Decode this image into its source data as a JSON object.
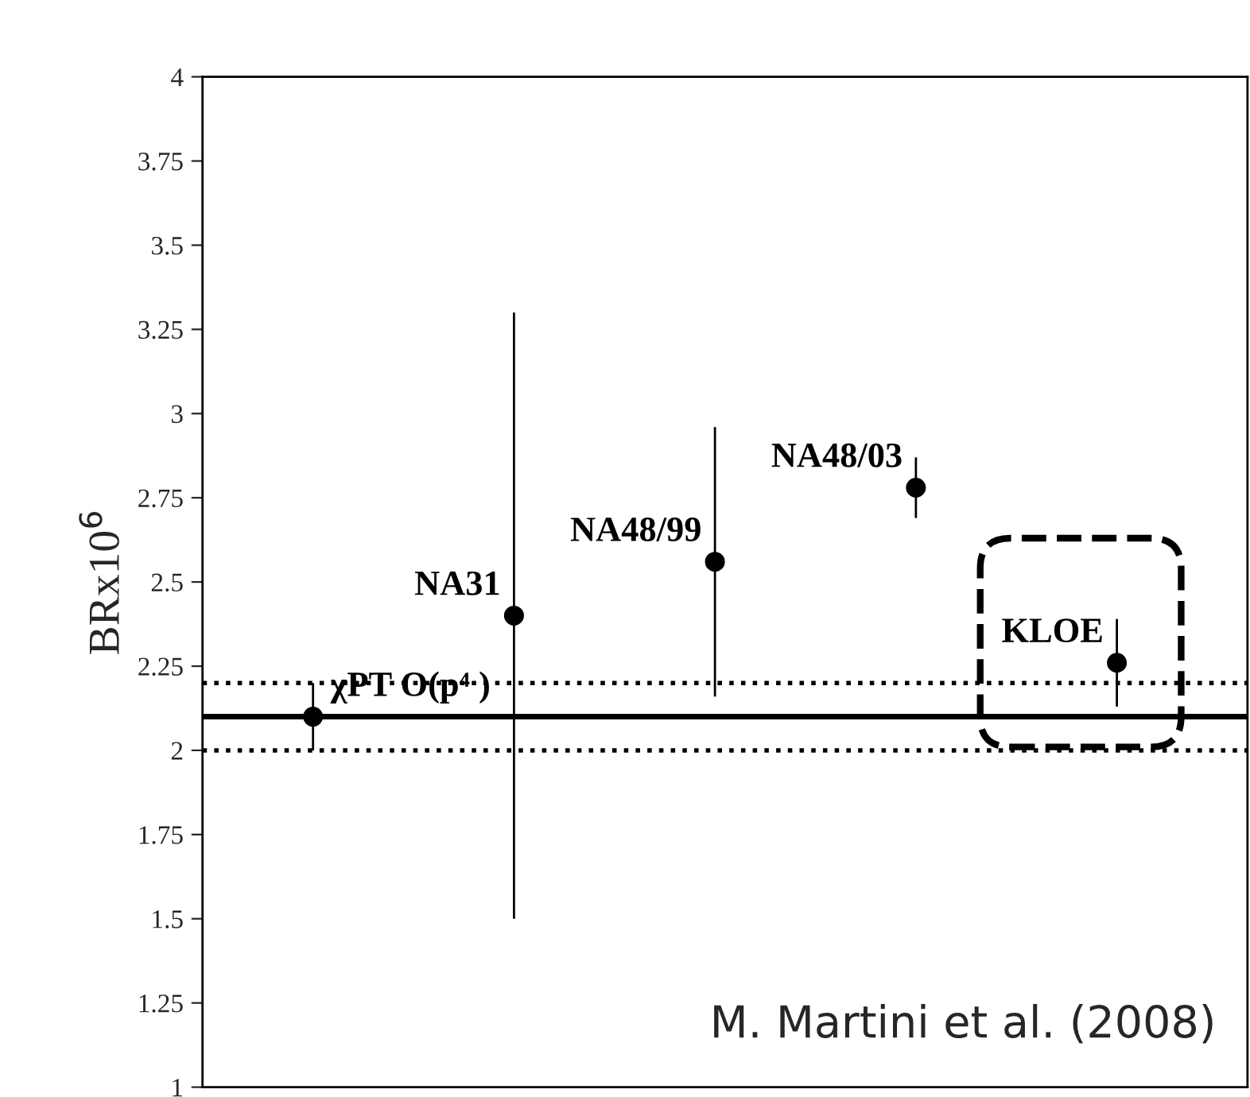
{
  "chart_data": {
    "type": "scatter",
    "ylabel": "BRx10$^{6}$",
    "categories": [
      null,
      null,
      null,
      null,
      null
    ],
    "series": [
      {
        "name": "χPT O(p⁴ )",
        "color": "#000000",
        "values": [
          2.1,
          null,
          null,
          null,
          null
        ],
        "errors": [
          0.1,
          null,
          null,
          null,
          null
        ]
      },
      {
        "name": "NA31",
        "color": "#000000",
        "values": [
          null,
          2.4,
          null,
          null,
          null
        ],
        "errors": [
          null,
          0.9,
          null,
          null,
          null
        ]
      },
      {
        "name": "NA48/99",
        "color": "#000000",
        "values": [
          null,
          null,
          2.56,
          null,
          null
        ],
        "errors": [
          null,
          null,
          0.4,
          null,
          null
        ]
      },
      {
        "name": "NA48/03",
        "color": "#000000",
        "values": [
          null,
          null,
          null,
          2.78,
          null
        ],
        "errors": [
          null,
          null,
          null,
          0.09,
          null
        ]
      },
      {
        "name": "KLOE",
        "color": "#000000",
        "values": [
          null,
          null,
          null,
          null,
          2.26
        ],
        "errors": [
          null,
          null,
          null,
          null,
          0.13
        ]
      }
    ],
    "ylim": [
      1,
      4
    ],
    "yticks": [
      1,
      1.25,
      1.5,
      1.75,
      2,
      2.25,
      2.5,
      2.75,
      3,
      3.25,
      3.5,
      3.75,
      4
    ],
    "ref_lines": [
      {
        "axis": "y",
        "value": 2.1,
        "color": "#000000",
        "line_style": "solid"
      },
      {
        "axis": "y",
        "value": 2.0,
        "color": "#000000",
        "line_style": "dotted"
      },
      {
        "axis": "y",
        "value": 2.2,
        "color": "#000000",
        "line_style": "dotted"
      }
    ],
    "annotations": [
      "M. Martini et al. (2008)"
    ],
    "marker": "circle",
    "grid": false,
    "legend": false
  }
}
